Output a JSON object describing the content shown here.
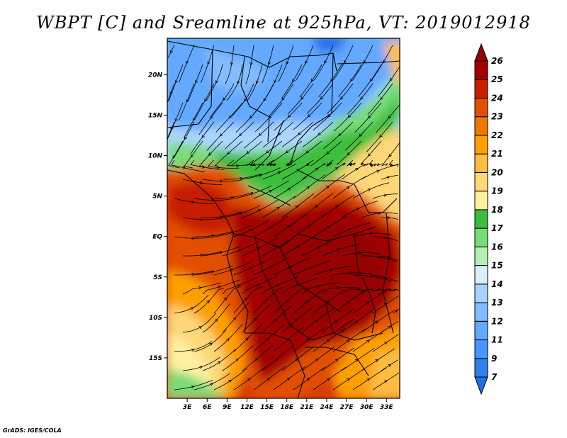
{
  "title": "WBPT [C] and Sreamline at 925hPa, VT: 2019012918",
  "credit": "GrADS: IGES/COLA",
  "map": {
    "variable": "Wet-bulb potential temperature",
    "unit": "C",
    "level": "925hPa",
    "valid_time": "2019012918",
    "lon_range": [
      0,
      35
    ],
    "lat_range": [
      -20,
      24.5
    ],
    "lat_ticks": [
      {
        "value": 20,
        "label": "20N"
      },
      {
        "value": 15,
        "label": "15N"
      },
      {
        "value": 10,
        "label": "10N"
      },
      {
        "value": 5,
        "label": "5N"
      },
      {
        "value": 0,
        "label": "EQ"
      },
      {
        "value": -5,
        "label": "5S"
      },
      {
        "value": -10,
        "label": "10S"
      },
      {
        "value": -15,
        "label": "15S"
      }
    ],
    "lon_ticks": [
      {
        "value": 3,
        "label": "3E"
      },
      {
        "value": 6,
        "label": "6E"
      },
      {
        "value": 9,
        "label": "9E"
      },
      {
        "value": 12,
        "label": "12E"
      },
      {
        "value": 15,
        "label": "15E"
      },
      {
        "value": 18,
        "label": "18E"
      },
      {
        "value": 21,
        "label": "21E"
      },
      {
        "value": 24,
        "label": "24E"
      },
      {
        "value": 27,
        "label": "27E"
      },
      {
        "value": 30,
        "label": "30E"
      },
      {
        "value": 33,
        "label": "33E"
      }
    ]
  },
  "colorbar": {
    "levels": [
      "7",
      "9",
      "11",
      "12",
      "13",
      "14",
      "15",
      "16",
      "17",
      "18",
      "19",
      "20",
      "21",
      "22",
      "23",
      "24",
      "25",
      "26"
    ],
    "colors": [
      "#1e6ee6",
      "#2d82f0",
      "#4696ff",
      "#64a9ff",
      "#82bdff",
      "#a6d3ff",
      "#d9efff",
      "#b4f0b4",
      "#78dc78",
      "#3cbe3c",
      "#fff0a0",
      "#ffd777",
      "#ffbd40",
      "#ffa000",
      "#f07800",
      "#e24f00",
      "#c81e00",
      "#a50000",
      "#960000"
    ]
  }
}
